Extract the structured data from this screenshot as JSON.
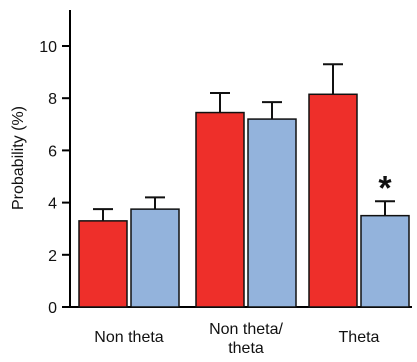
{
  "chart_data": {
    "type": "bar",
    "ylabel": "Probability (%)",
    "xlabel": "",
    "ylim": [
      0,
      11
    ],
    "yticks": [
      0,
      2,
      4,
      6,
      8,
      10
    ],
    "grid": false,
    "categories": [
      {
        "lines": [
          "Non theta"
        ]
      },
      {
        "lines": [
          "Non theta/",
          "theta"
        ]
      },
      {
        "lines": [
          "Theta"
        ]
      }
    ],
    "series": [
      {
        "color": "#ee2f2a",
        "values": [
          3.3,
          7.45,
          8.15
        ],
        "errors": [
          0.45,
          0.75,
          1.15
        ]
      },
      {
        "color": "#93b3dc",
        "values": [
          3.75,
          7.2,
          3.5
        ],
        "errors": [
          0.45,
          0.65,
          0.55
        ]
      }
    ],
    "annotations": [
      {
        "text": "*",
        "category": 2,
        "series": 1
      }
    ]
  }
}
